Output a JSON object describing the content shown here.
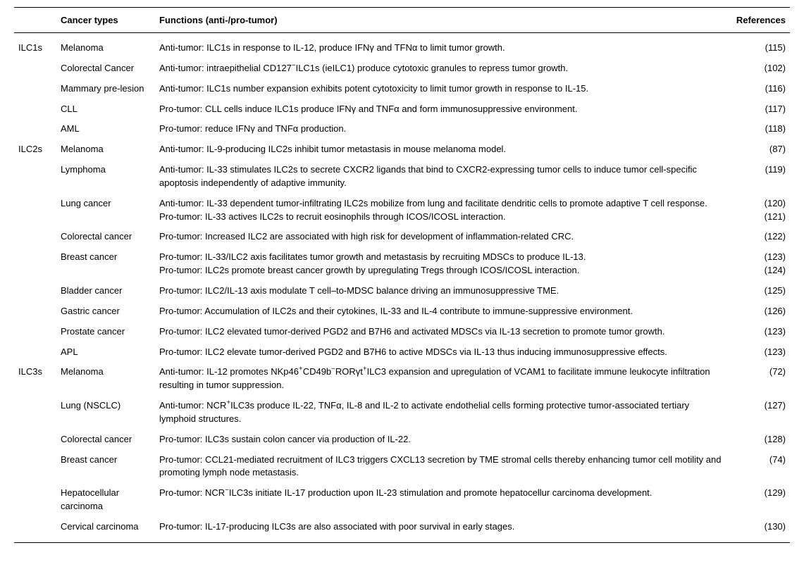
{
  "columns": {
    "group": "",
    "cancer": "Cancer types",
    "functions": "Functions (anti-/pro-tumor)",
    "references": "References"
  },
  "rows": [
    {
      "group": "ILC1s",
      "cancer": "Melanoma",
      "functions_html": "Anti-tumor: ILC1s in response to IL-12, produce IFNγ and TFNα to limit tumor growth.",
      "refs": [
        "(115)"
      ]
    },
    {
      "group": "",
      "cancer": "Colorectal Cancer",
      "functions_html": "Anti-tumor: intraepithelial CD127<sup>−</sup>ILC1s (ieILC1) produce cytotoxic granules to repress tumor growth.",
      "refs": [
        "(102)"
      ]
    },
    {
      "group": "",
      "cancer": "Mammary pre-lesion",
      "functions_html": "Anti-tumor: ILC1s number expansion exhibits potent cytotoxicity to limit tumor growth in response to IL-15.",
      "refs": [
        "(116)"
      ]
    },
    {
      "group": "",
      "cancer": "CLL",
      "functions_html": "Pro-tumor: CLL cells induce ILC1s produce IFNγ and TNFα and form immunosuppressive environment.",
      "refs": [
        "(117)"
      ]
    },
    {
      "group": "",
      "cancer": "AML",
      "functions_html": "Pro-tumor: reduce IFNγ and TNFα production.",
      "refs": [
        "(118)"
      ]
    },
    {
      "group": "ILC2s",
      "cancer": "Melanoma",
      "functions_html": "Anti-tumor: IL-9-producing ILC2s inhibit tumor metastasis in mouse melanoma model.",
      "refs": [
        "(87)"
      ]
    },
    {
      "group": "",
      "cancer": "Lymphoma",
      "functions_html": "Anti-tumor: IL-33 stimulates ILC2s to secrete CXCR2 ligands that bind to CXCR2-expressing tumor cells to induce tumor cell-specific apoptosis independently of adaptive immunity.",
      "refs": [
        "(119)"
      ]
    },
    {
      "group": "",
      "cancer": "Lung cancer",
      "functions_lines": [
        "Anti-tumor: IL-33 dependent tumor-infiltrating ILC2s mobilize from lung and facilitate dendritic cells to promote adaptive T cell response.",
        "Pro-tumor: IL-33 actives ILC2s to recruit eosinophils through ICOS/ICOSL interaction."
      ],
      "refs": [
        "(120)",
        "(121)"
      ]
    },
    {
      "group": "",
      "cancer": "Colorectal cancer",
      "functions_html": "Pro-tumor: Increased ILC2 are associated with high risk for development of inflammation-related CRC.",
      "refs": [
        "(122)"
      ]
    },
    {
      "group": "",
      "cancer": "Breast cancer",
      "functions_lines": [
        "Pro-tumor: IL-33/ILC2 axis facilitates tumor growth and metastasis by recruiting MDSCs to produce IL-13.",
        "Pro-tumor: ILC2s promote breast cancer growth by upregulating Tregs through ICOS/ICOSL interaction."
      ],
      "refs": [
        "(123)",
        "(124)"
      ]
    },
    {
      "group": "",
      "cancer": "Bladder cancer",
      "functions_html": "Pro-tumor: ILC2/IL-13 axis modulate T cell–to-MDSC balance driving an immunosuppressive TME.",
      "refs": [
        "(125)"
      ]
    },
    {
      "group": "",
      "cancer": "Gastric cancer",
      "functions_html": "Pro-tumor: Accumulation of ILC2s and their cytokines, IL-33 and IL-4 contribute to immune-suppressive environment.",
      "refs": [
        "(126)"
      ]
    },
    {
      "group": "",
      "cancer": "Prostate cancer",
      "functions_html": "Pro-tumor: ILC2 elevated tumor-derived PGD2 and B7H6 and activated MDSCs via IL-13 secretion to promote tumor growth.",
      "refs": [
        "(123)"
      ]
    },
    {
      "group": "",
      "cancer": "APL",
      "functions_html": "Pro-tumor: ILC2 elevate tumor-derived PGD2 and B7H6 to active MDSCs via IL-13 thus inducing immunosuppressive effects.",
      "refs": [
        "(123)"
      ]
    },
    {
      "group": "ILC3s",
      "cancer": "Melanoma",
      "functions_html": "Anti-tumor: IL-12 promotes NKp46<sup>+</sup>CD49b<sup>−</sup>RORγt<sup>+</sup>ILC3 expansion and upregulation of VCAM1 to facilitate immune leukocyte infiltration resulting in tumor suppression.",
      "refs": [
        "(72)"
      ]
    },
    {
      "group": "",
      "cancer": "Lung (NSCLC)",
      "functions_html": "Anti-tumor: NCR<sup>+</sup>ILC3s produce IL-22, TNFα, IL-8 and IL-2 to activate endothelial cells forming protective tumor-associated tertiary lymphoid structures.",
      "refs": [
        "(127)"
      ]
    },
    {
      "group": "",
      "cancer": "Colorectal cancer",
      "functions_html": "Pro-tumor: ILC3s sustain colon cancer via production of IL-22.",
      "refs": [
        "(128)"
      ]
    },
    {
      "group": "",
      "cancer": "Breast cancer",
      "functions_html": "Pro-tumor: CCL21-mediated recruitment of ILC3 triggers CXCL13 secretion by TME stromal cells thereby enhancing tumor cell motility and promoting lymph node metastasis.",
      "refs": [
        "(74)"
      ]
    },
    {
      "group": "",
      "cancer": "Hepatocellular carcinoma",
      "functions_html": "Pro-tumor: NCR<sup>−</sup>ILC3s initiate IL-17 production upon IL-23 stimulation and promote hepatocellur carcinoma development.",
      "refs": [
        "(129)"
      ]
    },
    {
      "group": "",
      "cancer": "Cervical carcinoma",
      "functions_html": "Pro-tumor: IL-17-producing ILC3s are also associated with poor survival in early stages.",
      "refs": [
        "(130)"
      ]
    }
  ],
  "column_widths": {
    "group": "60px",
    "cancer": "140px",
    "functions": "auto",
    "references": "90px"
  }
}
